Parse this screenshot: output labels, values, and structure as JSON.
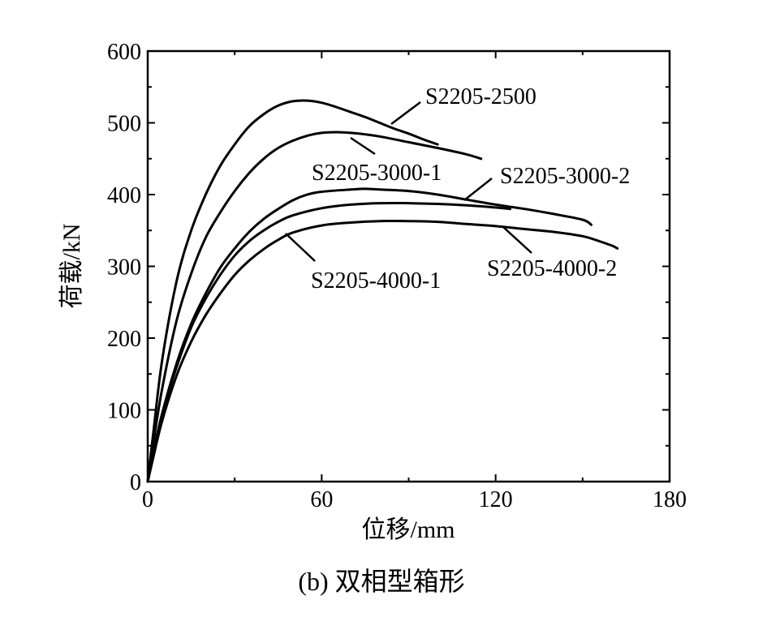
{
  "chart_data": {
    "type": "line",
    "xlabel": "位移/mm",
    "ylabel": "荷载/kN",
    "xlim": [
      0,
      180
    ],
    "ylim": [
      0,
      600
    ],
    "xticks": [
      0,
      60,
      120,
      180
    ],
    "yticks": [
      0,
      100,
      200,
      300,
      400,
      500,
      600
    ],
    "grid": false,
    "caption": "(b)  双相型箱形",
    "series": [
      {
        "name": "S2205-2500",
        "x": [
          0,
          2,
          5,
          10,
          15,
          20,
          25,
          30,
          35,
          40,
          45,
          50,
          55,
          60,
          65,
          70,
          75,
          80,
          85,
          90,
          95,
          100
        ],
        "y": [
          0,
          70,
          170,
          280,
          350,
          400,
          440,
          470,
          495,
          512,
          524,
          530,
          531,
          528,
          522,
          515,
          508,
          500,
          492,
          485,
          477,
          470
        ]
      },
      {
        "name": "S2205-3000-1",
        "x": [
          0,
          2,
          5,
          10,
          15,
          20,
          25,
          30,
          35,
          40,
          45,
          50,
          55,
          60,
          65,
          70,
          75,
          80,
          90,
          100,
          110,
          115
        ],
        "y": [
          0,
          55,
          130,
          225,
          290,
          340,
          375,
          405,
          430,
          450,
          465,
          475,
          482,
          486,
          487,
          486,
          484,
          481,
          473,
          465,
          456,
          450
        ]
      },
      {
        "name": "S2205-3000-2",
        "x": [
          0,
          2,
          5,
          10,
          15,
          20,
          25,
          30,
          35,
          40,
          45,
          50,
          55,
          60,
          70,
          75,
          80,
          90,
          100,
          110,
          120,
          130,
          140,
          150,
          153
        ],
        "y": [
          0,
          40,
          95,
          165,
          220,
          262,
          298,
          325,
          348,
          366,
          380,
          392,
          400,
          404,
          407,
          408,
          407,
          405,
          400,
          393,
          386,
          380,
          373,
          365,
          358
        ]
      },
      {
        "name": "S2205-4000-1",
        "x": [
          0,
          2,
          5,
          10,
          15,
          20,
          25,
          30,
          35,
          40,
          45,
          50,
          60,
          70,
          80,
          90,
          100,
          110,
          120,
          130,
          140,
          150,
          155,
          160,
          162
        ],
        "y": [
          0,
          35,
          85,
          148,
          195,
          232,
          262,
          288,
          308,
          324,
          337,
          347,
          357,
          361,
          363,
          363,
          362,
          359,
          356,
          352,
          348,
          342,
          336,
          329,
          325
        ]
      },
      {
        "name": "S2205-4000-2",
        "x": [
          0,
          2,
          5,
          10,
          15,
          20,
          25,
          30,
          35,
          40,
          45,
          50,
          60,
          70,
          80,
          90,
          100,
          110,
          120,
          125
        ],
        "y": [
          0,
          40,
          95,
          160,
          215,
          255,
          288,
          315,
          335,
          350,
          362,
          371,
          381,
          386,
          388,
          388,
          387,
          385,
          382,
          380
        ]
      }
    ]
  }
}
